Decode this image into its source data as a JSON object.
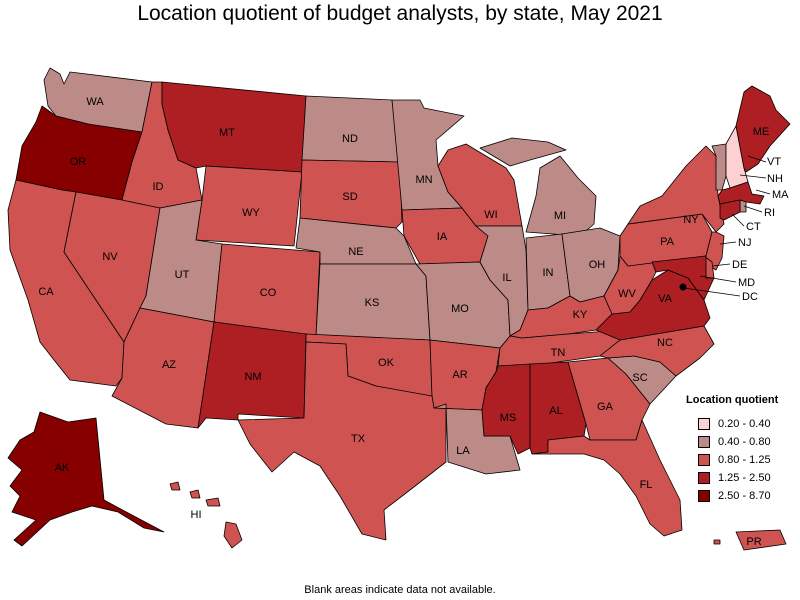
{
  "title": "Location quotient of budget analysts, by state, May 2021",
  "footnote": "Blank areas indicate data not available.",
  "legend": {
    "title": "Location quotient",
    "classes": [
      {
        "label": "0.20 - 0.40",
        "color": "#fdd0d2"
      },
      {
        "label": "0.40 - 0.80",
        "color": "#bc8a87"
      },
      {
        "label": "0.80 - 1.25",
        "color": "#cf5451"
      },
      {
        "label": "1.25 - 2.50",
        "color": "#ad1f23"
      },
      {
        "label": "2.50 - 8.70",
        "color": "#870000"
      }
    ]
  },
  "states": [
    {
      "abbr": "WA",
      "class": 1
    },
    {
      "abbr": "OR",
      "class": 4
    },
    {
      "abbr": "CA",
      "class": 2
    },
    {
      "abbr": "ID",
      "class": 2
    },
    {
      "abbr": "NV",
      "class": 2
    },
    {
      "abbr": "MT",
      "class": 3
    },
    {
      "abbr": "WY",
      "class": 2
    },
    {
      "abbr": "UT",
      "class": 1
    },
    {
      "abbr": "AZ",
      "class": 2
    },
    {
      "abbr": "CO",
      "class": 2
    },
    {
      "abbr": "NM",
      "class": 3
    },
    {
      "abbr": "ND",
      "class": 1
    },
    {
      "abbr": "SD",
      "class": 2
    },
    {
      "abbr": "NE",
      "class": 1
    },
    {
      "abbr": "KS",
      "class": 1
    },
    {
      "abbr": "OK",
      "class": 2
    },
    {
      "abbr": "TX",
      "class": 2
    },
    {
      "abbr": "MN",
      "class": 1
    },
    {
      "abbr": "IA",
      "class": 2
    },
    {
      "abbr": "MO",
      "class": 1
    },
    {
      "abbr": "AR",
      "class": 2
    },
    {
      "abbr": "LA",
      "class": 1
    },
    {
      "abbr": "WI",
      "class": 2
    },
    {
      "abbr": "IL",
      "class": 1
    },
    {
      "abbr": "MI",
      "class": 1
    },
    {
      "abbr": "IN",
      "class": 1
    },
    {
      "abbr": "OH",
      "class": 1
    },
    {
      "abbr": "KY",
      "class": 2
    },
    {
      "abbr": "TN",
      "class": 2
    },
    {
      "abbr": "MS",
      "class": 3
    },
    {
      "abbr": "AL",
      "class": 3
    },
    {
      "abbr": "GA",
      "class": 2
    },
    {
      "abbr": "FL",
      "class": 2
    },
    {
      "abbr": "SC",
      "class": 1
    },
    {
      "abbr": "NC",
      "class": 2
    },
    {
      "abbr": "VA",
      "class": 3
    },
    {
      "abbr": "WV",
      "class": 2
    },
    {
      "abbr": "PA",
      "class": 2
    },
    {
      "abbr": "NY",
      "class": 2
    },
    {
      "abbr": "VT",
      "class": 1
    },
    {
      "abbr": "NH",
      "class": 0
    },
    {
      "abbr": "ME",
      "class": 3
    },
    {
      "abbr": "MA",
      "class": 3
    },
    {
      "abbr": "RI",
      "class": 1
    },
    {
      "abbr": "CT",
      "class": 3
    },
    {
      "abbr": "NJ",
      "class": 2
    },
    {
      "abbr": "DE",
      "class": 2
    },
    {
      "abbr": "MD",
      "class": 3
    },
    {
      "abbr": "DC",
      "class": 4
    },
    {
      "abbr": "AK",
      "class": 4
    },
    {
      "abbr": "HI",
      "class": 2
    },
    {
      "abbr": "PR",
      "class": 2
    }
  ]
}
